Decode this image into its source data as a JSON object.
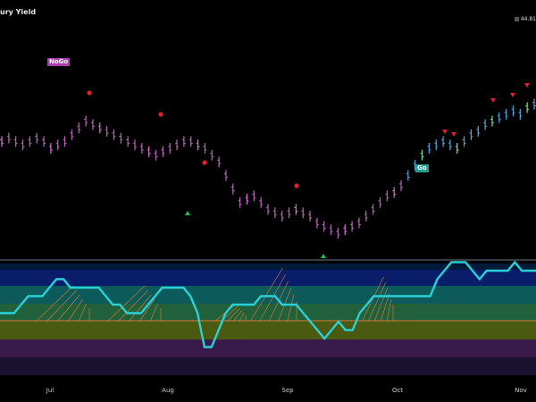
{
  "header": {
    "title": "ury Yield",
    "price": "44.81"
  },
  "labels": {
    "nogo": "NoGo",
    "go": "Go"
  },
  "colors": {
    "nogo_bar": "#b868b8",
    "nogo_bright": "#e070e0",
    "nogo_box": "#b03ab0",
    "go_bar": "#4fa8e0",
    "go_bright": "#7fe0a0",
    "go_box": "#20a090",
    "red_marker": "#e02030",
    "green_marker": "#20c040",
    "oscillator_line": "#2ad0d8",
    "cone": "#e07a30",
    "zero_line": "#e07a30"
  },
  "chart_data": {
    "type": "line",
    "x_ticks": [
      "Jul",
      "Aug",
      "Sep",
      "Oct",
      "Nov"
    ],
    "price_series": [
      62,
      63,
      62,
      61,
      62,
      63,
      62,
      60,
      61,
      62,
      64,
      66,
      68,
      67,
      66,
      65,
      64,
      63,
      62,
      61,
      60,
      59,
      58,
      59,
      60,
      61,
      62,
      62,
      61,
      60,
      58,
      56,
      52,
      48,
      44,
      45,
      46,
      44,
      42,
      41,
      40,
      41,
      42,
      41,
      40,
      38,
      37,
      36,
      35,
      36,
      37,
      38,
      40,
      42,
      44,
      46,
      47,
      49,
      52,
      55,
      58,
      60,
      61,
      62,
      61,
      60,
      62,
      64,
      65,
      67,
      68,
      69,
      70,
      71,
      70,
      72,
      73
    ],
    "oscillator_series": [
      1,
      1,
      1,
      2,
      3,
      3,
      3,
      4,
      5,
      5,
      4,
      4,
      4,
      4,
      4,
      3,
      2,
      2,
      1,
      1,
      1,
      2,
      3,
      4,
      4,
      4,
      4,
      3,
      1,
      -3,
      -3,
      -1,
      1,
      2,
      2,
      2,
      2,
      3,
      3,
      3,
      2,
      2,
      2,
      1,
      0,
      -1,
      -2,
      -1,
      0,
      -1,
      -1,
      1,
      2,
      3,
      3,
      3,
      3,
      3,
      3,
      3,
      3,
      3,
      5,
      6,
      7,
      7,
      7,
      6,
      5,
      6,
      6,
      6,
      6,
      7,
      6,
      6,
      6
    ],
    "nogo_markers": [
      "red-dot",
      "red-dot",
      "red-dot",
      "red-dot"
    ],
    "go_markers": [
      "red-triangle",
      "red-triangle",
      "red-triangle",
      "red-triangle"
    ],
    "legend": "none"
  }
}
